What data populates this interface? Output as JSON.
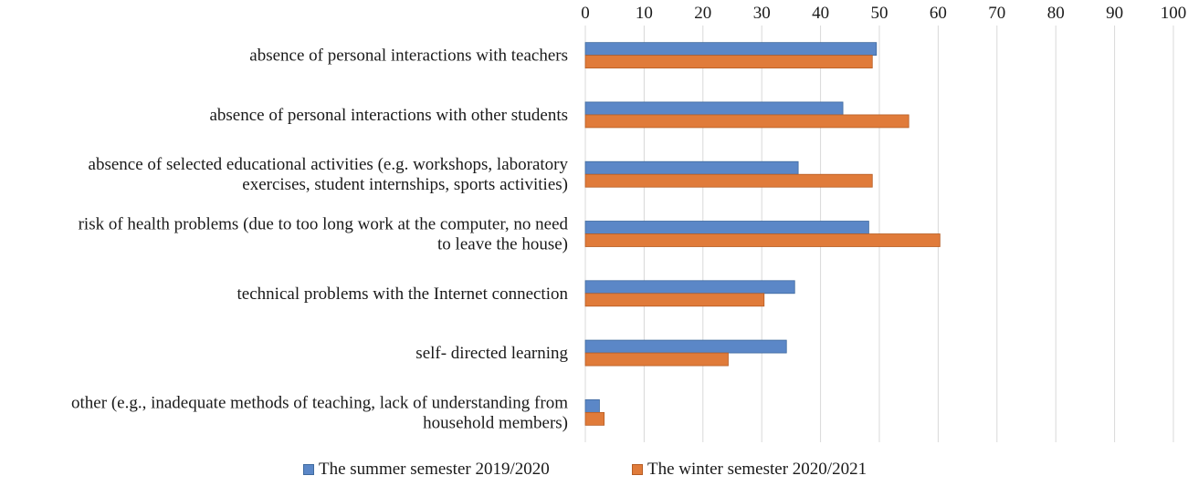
{
  "chart_data": {
    "type": "bar",
    "orientation": "horizontal",
    "categories": [
      [
        "absence of personal interactions with teachers"
      ],
      [
        "absence of personal interactions with other students"
      ],
      [
        "absence of selected educational activities (e.g. workshops, laboratory",
        "exercises, student internships, sports activities)"
      ],
      [
        "risk of health problems (due to too long work at the computer, no need",
        "to leave the house)"
      ],
      [
        "technical problems with the Internet connection"
      ],
      [
        "self- directed learning"
      ],
      [
        "other (e.g., inadequate methods of teaching, lack of understanding from",
        "household members)"
      ]
    ],
    "series": [
      {
        "name": "The summer semester 2019/2020",
        "color": "#5b87c7",
        "values": [
          49.5,
          43.8,
          36.2,
          48.2,
          35.6,
          34.2,
          2.4
        ]
      },
      {
        "name": "The winter semester 2020/2021",
        "color": "#e07b3a",
        "values": [
          48.8,
          55,
          48.8,
          60.3,
          30.4,
          24.3,
          3.2
        ]
      }
    ],
    "xlim": [
      0,
      100
    ],
    "xticks": [
      "0",
      "10",
      "20",
      "30",
      "40",
      "50",
      "60",
      "70",
      "80",
      "90",
      "100"
    ],
    "grid": true,
    "xaxis_position": "top",
    "legend_position": "bottom"
  }
}
